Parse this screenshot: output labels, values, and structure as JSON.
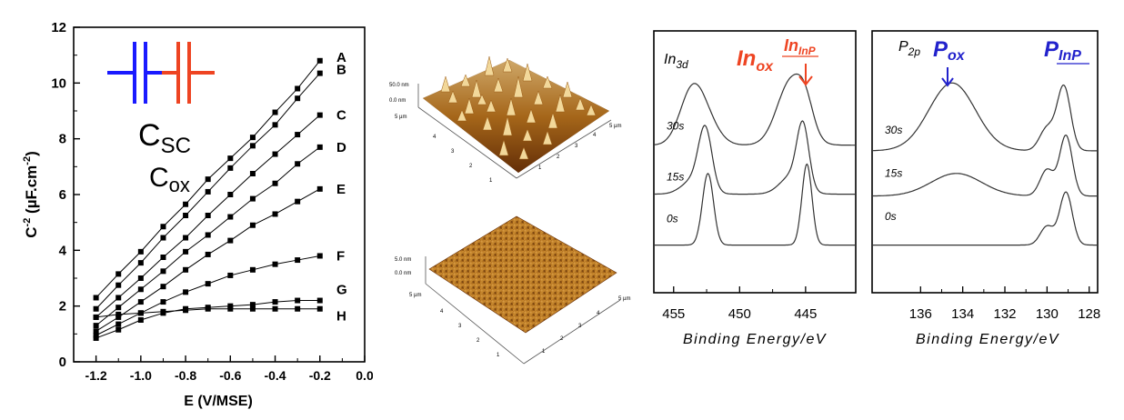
{
  "chart_data": [
    {
      "type": "line",
      "xlabel": "E (V/MSE)",
      "ylabel_main": "C",
      "ylabel_sup1": "-2",
      "ylabel_mid": " (µF.cm",
      "ylabel_sup2": "-2",
      "ylabel_end": ")",
      "xlim": [
        -1.3,
        0.0
      ],
      "ylim": [
        0,
        12
      ],
      "xticks": [
        "-1.2",
        "-1.0",
        "-0.8",
        "-0.6",
        "-0.4",
        "-0.2",
        "0.0"
      ],
      "xtick_values": [
        -1.2,
        -1.0,
        -0.8,
        -0.6,
        -0.4,
        -0.2,
        0.0
      ],
      "yticks": [
        "0",
        "2",
        "4",
        "6",
        "8",
        "10",
        "12"
      ],
      "ytick_values": [
        0,
        2,
        4,
        6,
        8,
        10,
        12
      ],
      "inset": {
        "csc_main": "C",
        "csc_sub": "SC",
        "csc_color": "#1a1aff",
        "cox_main": "C",
        "cox_sub": "ox",
        "cox_color": "#ee4422"
      },
      "x": [
        -1.2,
        -1.1,
        -1.0,
        -0.9,
        -0.8,
        -0.7,
        -0.6,
        -0.5,
        -0.4,
        -0.3,
        -0.2
      ],
      "series": [
        {
          "name": "A",
          "values": [
            2.3,
            3.15,
            3.95,
            4.85,
            5.65,
            6.55,
            7.3,
            8.05,
            8.95,
            9.8,
            10.8
          ]
        },
        {
          "name": "B",
          "values": [
            1.9,
            2.75,
            3.55,
            4.45,
            5.25,
            6.1,
            6.95,
            7.75,
            8.5,
            9.45,
            10.35
          ]
        },
        {
          "name": "C",
          "values": [
            1.6,
            2.3,
            3.0,
            3.75,
            4.45,
            5.25,
            6.0,
            6.75,
            7.45,
            8.15,
            8.85
          ]
        },
        {
          "name": "D",
          "values": [
            1.3,
            1.95,
            2.6,
            3.25,
            3.95,
            4.55,
            5.2,
            5.85,
            6.4,
            7.1,
            7.7
          ]
        },
        {
          "name": "E",
          "values": [
            1.1,
            1.6,
            2.15,
            2.7,
            3.3,
            3.85,
            4.35,
            4.9,
            5.3,
            5.75,
            6.2
          ]
        },
        {
          "name": "F",
          "values": [
            0.95,
            1.35,
            1.75,
            2.15,
            2.5,
            2.8,
            3.1,
            3.3,
            3.5,
            3.65,
            3.8
          ]
        },
        {
          "name": "G",
          "values": [
            0.85,
            1.15,
            1.5,
            1.75,
            1.9,
            1.95,
            2.0,
            2.05,
            2.15,
            2.2,
            2.2
          ]
        },
        {
          "name": "H",
          "values": [
            1.6,
            1.7,
            1.75,
            1.8,
            1.85,
            1.9,
            1.9,
            1.9,
            1.9,
            1.9,
            1.9
          ]
        }
      ]
    },
    {
      "type": "line",
      "xlabel": "Binding Energy/eV",
      "ylabel": "",
      "xlim": [
        456.5,
        441.2
      ],
      "xticks": [
        "455",
        "450",
        "445"
      ],
      "xtick_values": [
        455,
        450,
        445
      ],
      "header_main": "In",
      "header_sub": "3d",
      "annotation_ox_main": "In",
      "annotation_ox_sub": "ox",
      "annotation_ox_color": "#ee4422",
      "annotation_inp_main": "In",
      "annotation_inp_sub": "InP",
      "annotation_inp_color": "#ee4422",
      "series": [
        {
          "name": "30s",
          "label_y": 0.72,
          "baseline": 0.79,
          "peaks": [
            {
              "x": 453.7,
              "h": 0.23,
              "w": 0.9
            },
            {
              "x": 452.7,
              "h": 0.14,
              "w": 1.0
            },
            {
              "x": 446.1,
              "h": 0.34,
              "w": 1.05
            },
            {
              "x": 445.0,
              "h": 0.12,
              "w": 0.6
            }
          ]
        },
        {
          "name": "15s",
          "label_y": 0.45,
          "baseline": 0.53,
          "peaks": [
            {
              "x": 452.6,
              "h": 0.31,
              "w": 0.5
            },
            {
              "x": 453.4,
              "h": 0.08,
              "w": 0.9
            },
            {
              "x": 445.2,
              "h": 0.32,
              "w": 0.45
            },
            {
              "x": 446.0,
              "h": 0.1,
              "w": 0.9
            }
          ]
        },
        {
          "name": "0s",
          "label_y": 0.23,
          "baseline": 0.26,
          "peaks": [
            {
              "x": 452.4,
              "h": 0.38,
              "w": 0.42
            },
            {
              "x": 444.9,
              "h": 0.43,
              "w": 0.38
            }
          ]
        }
      ]
    },
    {
      "type": "line",
      "xlabel": "Binding Energy/eV",
      "ylabel": "",
      "xlim": [
        138.3,
        127.6
      ],
      "xticks": [
        "136",
        "134",
        "132",
        "130",
        "128"
      ],
      "xtick_values": [
        136,
        134,
        132,
        130,
        128
      ],
      "header_main": "P",
      "header_sub": "2p",
      "annotation_ox_main": "P",
      "annotation_ox_sub": "ox",
      "annotation_ox_color": "#2222cc",
      "annotation_inp_main": "P",
      "annotation_inp_sub": "InP",
      "annotation_inp_color": "#2222cc",
      "series": [
        {
          "name": "30s",
          "label_y": 0.7,
          "baseline": 0.76,
          "peaks": [
            {
              "x": 134.5,
              "h": 0.36,
              "w": 1.1
            },
            {
              "x": 130.0,
              "h": 0.12,
              "w": 0.35
            },
            {
              "x": 129.2,
              "h": 0.34,
              "w": 0.32
            }
          ]
        },
        {
          "name": "15s",
          "label_y": 0.47,
          "baseline": 0.52,
          "peaks": [
            {
              "x": 134.3,
              "h": 0.12,
              "w": 1.2
            },
            {
              "x": 130.0,
              "h": 0.14,
              "w": 0.33
            },
            {
              "x": 129.1,
              "h": 0.32,
              "w": 0.3
            }
          ]
        },
        {
          "name": "0s",
          "label_y": 0.24,
          "baseline": 0.26,
          "peaks": [
            {
              "x": 130.0,
              "h": 0.1,
              "w": 0.32
            },
            {
              "x": 129.1,
              "h": 0.28,
              "w": 0.3
            }
          ]
        }
      ]
    }
  ],
  "afm": {
    "top": {
      "z_scale": "50.0 nm",
      "z_zero": "0.0 nm",
      "x_unit": "5 µm",
      "y_unit": "5 µm",
      "ticks": [
        "1",
        "2",
        "3",
        "4"
      ]
    },
    "bottom": {
      "z_scale": "5.0 nm",
      "z_zero": "0.0 nm",
      "x_unit": "5 µm",
      "y_unit": "5 µm",
      "ticks": [
        "1",
        "2",
        "3",
        "4"
      ]
    }
  }
}
